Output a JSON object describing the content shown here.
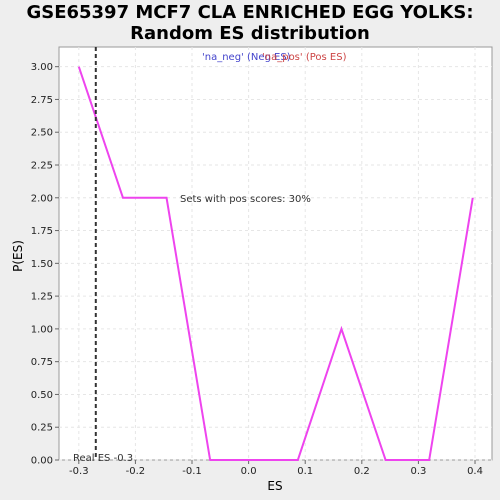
{
  "chart_data": {
    "type": "line",
    "title_line1": "GSE65397 MCF7 CLA ENRICHED EGG YOLKS:",
    "title_line2": "Random ES distribution",
    "xlabel": "ES",
    "ylabel": "P(ES)",
    "xlim": [
      -0.335,
      0.43
    ],
    "ylim": [
      0,
      3.15
    ],
    "x_ticks": [
      -0.3,
      -0.2,
      -0.1,
      0.0,
      0.1,
      0.2,
      0.3,
      0.4
    ],
    "x_tick_labels": [
      "-0.3",
      "-0.2",
      "-0.1",
      "0.0",
      "0.1",
      "0.2",
      "0.3",
      "0.4"
    ],
    "y_ticks": [
      0,
      0.25,
      0.5,
      0.75,
      1.0,
      1.25,
      1.5,
      1.75,
      2.0,
      2.25,
      2.5,
      2.75,
      3.0
    ],
    "y_tick_labels": [
      "0.00",
      "0.25",
      "0.50",
      "0.75",
      "1.00",
      "1.25",
      "1.50",
      "1.75",
      "2.00",
      "2.25",
      "2.50",
      "2.75",
      "3.00"
    ],
    "grid": true,
    "legend": {
      "neg_label": "'na_neg' (Neg ES)",
      "pos_label": "'na_pos' (Pos ES)",
      "neg_color": "#4444cc",
      "pos_color": "#cc4444"
    },
    "series": [
      {
        "color": "#ee44ee",
        "x": [
          -0.3,
          -0.222,
          -0.145,
          -0.068,
          0.009,
          0.087,
          0.164,
          0.242,
          0.319,
          0.396
        ],
        "y": [
          3.0,
          2.0,
          2.0,
          0.0,
          0.0,
          0.0,
          1.0,
          0.0,
          0.0,
          2.0
        ]
      }
    ],
    "real_es": -0.27,
    "real_es_label": "Real ES -0.3",
    "annotation": "Sets with pos scores: 30%"
  }
}
